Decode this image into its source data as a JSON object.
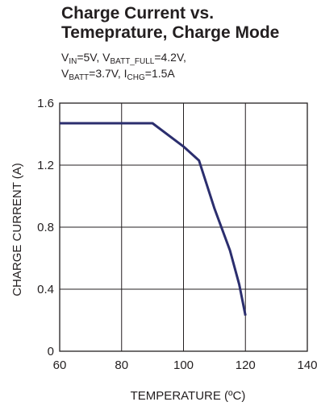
{
  "title_line1": "Charge Current vs.",
  "title_line2": "Temeprature, Charge Mode",
  "conditions": {
    "vin_sym": "V",
    "vin_sub": "IN",
    "vin_val": "=5V, ",
    "vbf_sym": "V",
    "vbf_sub": "BATT_FULL",
    "vbf_val": "=4.2V,",
    "vb_sym": "V",
    "vb_sub": "BATT",
    "vb_val": "=3.7V, ",
    "ichg_sym": "I",
    "ichg_sub": "CHG",
    "ichg_val": "=1.5A"
  },
  "chart_data": {
    "type": "line",
    "xlabel": "TEMPERATURE (ºC)",
    "ylabel": "CHARGE CURRENT (A)",
    "xlim": [
      60,
      140
    ],
    "ylim": [
      0,
      1.6
    ],
    "xticks": [
      "60",
      "80",
      "100",
      "120",
      "140"
    ],
    "yticks": [
      "0",
      "0.4",
      "0.8",
      "1.2",
      "1.6"
    ],
    "grid": true,
    "series": [
      {
        "color": "#2b2e6e",
        "x": [
          60,
          70,
          80,
          90,
          100,
          105,
          110,
          115,
          118,
          120
        ],
        "y": [
          1.47,
          1.47,
          1.47,
          1.47,
          1.32,
          1.23,
          0.92,
          0.65,
          0.43,
          0.23
        ]
      }
    ]
  }
}
